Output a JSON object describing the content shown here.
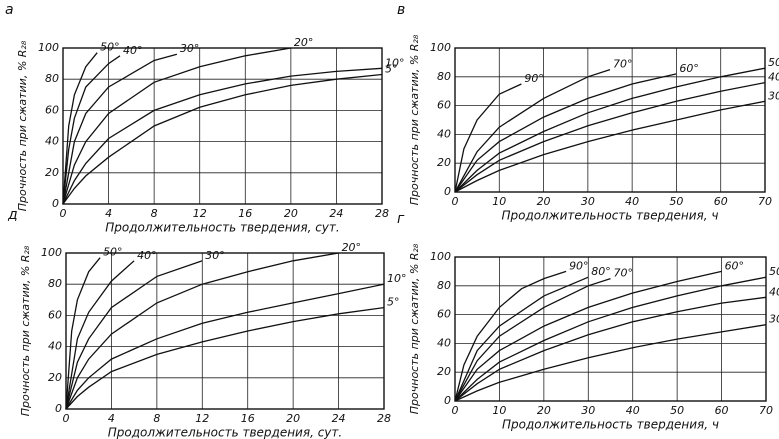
{
  "chart_data": [
    {
      "type": "line",
      "panel": "а",
      "y_label": "Прочность при сжатии, % R₂₈",
      "x_label": "Продолжительность твердения, сут.",
      "xlim": [
        0,
        28
      ],
      "ylim": [
        0,
        100
      ],
      "xticks": [
        0,
        4,
        8,
        12,
        16,
        20,
        24,
        28
      ],
      "yticks": [
        0,
        20,
        40,
        60,
        80,
        100
      ],
      "grid": true,
      "series": [
        {
          "name": "50°",
          "color": "#111111",
          "x": [
            0,
            0.5,
            1,
            2,
            3
          ],
          "values": [
            0,
            50,
            70,
            88,
            97
          ]
        },
        {
          "name": "40°",
          "color": "#111111",
          "x": [
            0,
            0.5,
            1,
            2,
            4,
            5
          ],
          "values": [
            0,
            35,
            55,
            75,
            90,
            95
          ]
        },
        {
          "name": "30°",
          "color": "#111111",
          "x": [
            0,
            1,
            2,
            4,
            8,
            10
          ],
          "values": [
            0,
            40,
            58,
            75,
            92,
            96
          ]
        },
        {
          "name": "20°",
          "color": "#111111",
          "x": [
            0,
            1,
            2,
            4,
            8,
            12,
            16,
            20
          ],
          "values": [
            0,
            25,
            40,
            58,
            78,
            88,
            95,
            100
          ]
        },
        {
          "name": "10°",
          "color": "#111111",
          "x": [
            0,
            1,
            2,
            4,
            8,
            12,
            16,
            20,
            24,
            28
          ],
          "values": [
            0,
            15,
            26,
            42,
            60,
            70,
            77,
            82,
            85,
            87
          ]
        },
        {
          "name": "5°",
          "color": "#111111",
          "x": [
            0,
            1,
            2,
            4,
            8,
            12,
            16,
            20,
            24,
            28
          ],
          "values": [
            0,
            10,
            18,
            30,
            50,
            62,
            70,
            76,
            80,
            83
          ]
        }
      ]
    },
    {
      "type": "line",
      "panel": "в",
      "y_label": "Прочность при сжатии, % R₂₈",
      "x_label": "Продолжительность твердения, ч",
      "xlim": [
        0,
        70
      ],
      "ylim": [
        0,
        100
      ],
      "xticks": [
        0,
        10,
        20,
        30,
        40,
        50,
        60,
        70
      ],
      "yticks": [
        0,
        20,
        40,
        60,
        80,
        100
      ],
      "grid": true,
      "series": [
        {
          "name": "90°",
          "color": "#111111",
          "x": [
            0,
            2,
            5,
            10,
            15
          ],
          "values": [
            0,
            30,
            50,
            68,
            75
          ]
        },
        {
          "name": "70°",
          "color": "#111111",
          "x": [
            0,
            5,
            10,
            20,
            30,
            35
          ],
          "values": [
            0,
            28,
            45,
            65,
            80,
            85
          ]
        },
        {
          "name": "60°",
          "color": "#111111",
          "x": [
            0,
            5,
            10,
            20,
            30,
            40,
            50
          ],
          "values": [
            0,
            22,
            35,
            52,
            65,
            75,
            82
          ]
        },
        {
          "name": "50°",
          "color": "#111111",
          "x": [
            0,
            5,
            10,
            20,
            30,
            40,
            50,
            60,
            70
          ],
          "values": [
            0,
            15,
            27,
            42,
            55,
            65,
            73,
            80,
            86
          ]
        },
        {
          "name": "40°",
          "color": "#111111",
          "x": [
            0,
            5,
            10,
            20,
            30,
            40,
            50,
            60,
            70
          ],
          "values": [
            0,
            12,
            22,
            35,
            46,
            55,
            63,
            70,
            76
          ]
        },
        {
          "name": "30°",
          "color": "#111111",
          "x": [
            0,
            5,
            10,
            20,
            30,
            40,
            50,
            60,
            70
          ],
          "values": [
            0,
            8,
            15,
            26,
            35,
            43,
            50,
            57,
            63
          ]
        }
      ]
    },
    {
      "type": "line",
      "panel": "д",
      "y_label": "Прочность при сжатии, % R₂₈",
      "x_label": "Продолжительность твердения, сут.",
      "xlim": [
        0,
        28
      ],
      "ylim": [
        0,
        100
      ],
      "xticks": [
        0,
        4,
        8,
        12,
        16,
        20,
        24,
        28
      ],
      "yticks": [
        0,
        20,
        40,
        60,
        80,
        100
      ],
      "grid": true,
      "series": [
        {
          "name": "50°",
          "color": "#111111",
          "x": [
            0,
            0.5,
            1,
            2,
            3
          ],
          "values": [
            0,
            50,
            70,
            88,
            97
          ]
        },
        {
          "name": "40°",
          "color": "#111111",
          "x": [
            0,
            1,
            2,
            4,
            6
          ],
          "values": [
            0,
            45,
            62,
            82,
            95
          ]
        },
        {
          "name": "30°",
          "color": "#111111",
          "x": [
            0,
            1,
            2,
            4,
            8,
            12
          ],
          "values": [
            0,
            30,
            45,
            65,
            85,
            95
          ]
        },
        {
          "name": "20°",
          "color": "#111111",
          "x": [
            0,
            1,
            2,
            4,
            8,
            12,
            16,
            20,
            24
          ],
          "values": [
            0,
            20,
            32,
            48,
            68,
            80,
            88,
            95,
            100
          ]
        },
        {
          "name": "10°",
          "color": "#111111",
          "x": [
            0,
            1,
            2,
            4,
            8,
            12,
            16,
            20,
            24,
            28
          ],
          "values": [
            0,
            12,
            20,
            32,
            45,
            55,
            62,
            68,
            74,
            80
          ]
        },
        {
          "name": "5°",
          "color": "#111111",
          "x": [
            0,
            1,
            2,
            4,
            8,
            12,
            16,
            20,
            24,
            28
          ],
          "values": [
            0,
            8,
            14,
            24,
            35,
            43,
            50,
            56,
            61,
            65
          ]
        }
      ]
    },
    {
      "type": "line",
      "panel": "г",
      "y_label": "Прочность при сжатии, % R₂₈",
      "x_label": "Продолжительность твердения, ч",
      "xlim": [
        0,
        70
      ],
      "ylim": [
        0,
        100
      ],
      "xticks": [
        0,
        10,
        20,
        30,
        40,
        50,
        60,
        70
      ],
      "yticks": [
        0,
        20,
        40,
        60,
        80,
        100
      ],
      "grid": true,
      "series": [
        {
          "name": "90°",
          "color": "#111111",
          "x": [
            0,
            2,
            5,
            10,
            15,
            20,
            25
          ],
          "values": [
            0,
            25,
            45,
            65,
            78,
            85,
            90
          ]
        },
        {
          "name": "80°",
          "color": "#111111",
          "x": [
            0,
            5,
            10,
            20,
            30
          ],
          "values": [
            0,
            35,
            52,
            73,
            86
          ]
        },
        {
          "name": "70°",
          "color": "#111111",
          "x": [
            0,
            5,
            10,
            20,
            30,
            35
          ],
          "values": [
            0,
            28,
            45,
            65,
            80,
            85
          ]
        },
        {
          "name": "60°",
          "color": "#111111",
          "x": [
            0,
            5,
            10,
            20,
            30,
            40,
            50,
            60
          ],
          "values": [
            0,
            22,
            35,
            52,
            65,
            75,
            83,
            90
          ]
        },
        {
          "name": "50°",
          "color": "#111111",
          "x": [
            0,
            5,
            10,
            20,
            30,
            40,
            50,
            60,
            70
          ],
          "values": [
            0,
            15,
            27,
            42,
            55,
            65,
            73,
            80,
            86
          ]
        },
        {
          "name": "40°",
          "color": "#111111",
          "x": [
            0,
            5,
            10,
            20,
            30,
            40,
            50,
            60,
            70
          ],
          "values": [
            0,
            12,
            22,
            35,
            46,
            55,
            62,
            68,
            72
          ]
        },
        {
          "name": "30°",
          "color": "#111111",
          "x": [
            0,
            5,
            10,
            20,
            30,
            40,
            50,
            60,
            70
          ],
          "values": [
            0,
            7,
            13,
            22,
            30,
            37,
            43,
            48,
            53
          ]
        }
      ]
    }
  ]
}
